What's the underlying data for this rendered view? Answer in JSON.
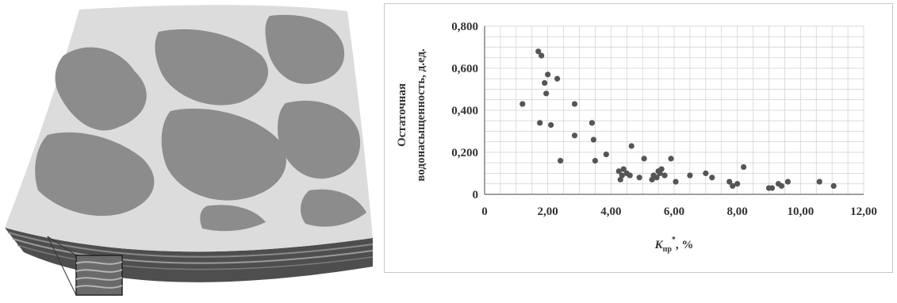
{
  "colors": {
    "marker": "#555555",
    "grid": "#cfcfcf",
    "axis": "#666666",
    "text": "#333333",
    "surface_light": "#d9d9d9",
    "surface_dark": "#8a8a8a",
    "layers": "#4a4a4a"
  },
  "illustration": {
    "kind": "reservoir-block-with-layer-inset"
  },
  "chart_data": {
    "type": "scatter",
    "title": "",
    "ylabel_line1": "Остаточная",
    "ylabel_line2": "водонасыщенность, д.ед.",
    "xlabel_main": "K",
    "xlabel_sub": "пр",
    "xlabel_sup": "*",
    "xlabel_suffix": ", %",
    "xlim": [
      0,
      12
    ],
    "ylim": [
      0,
      0.8
    ],
    "grid": true,
    "x_ticks": [
      0,
      2,
      4,
      6,
      8,
      10,
      12
    ],
    "y_ticks": [
      0,
      0.2,
      0.4,
      0.6,
      0.8
    ],
    "x_tick_labels": [
      "0",
      "2,00",
      "4,00",
      "6,00",
      "8,00",
      "10,00",
      "12,00"
    ],
    "y_tick_labels": [
      "0",
      "0,200",
      "0,400",
      "0,600",
      "0,800"
    ],
    "points": [
      [
        1.2,
        0.43
      ],
      [
        1.7,
        0.68
      ],
      [
        1.8,
        0.66
      ],
      [
        1.75,
        0.34
      ],
      [
        1.9,
        0.53
      ],
      [
        1.95,
        0.48
      ],
      [
        2.0,
        0.57
      ],
      [
        2.1,
        0.33
      ],
      [
        2.3,
        0.55
      ],
      [
        2.4,
        0.16
      ],
      [
        2.85,
        0.43
      ],
      [
        2.85,
        0.28
      ],
      [
        3.4,
        0.34
      ],
      [
        3.45,
        0.26
      ],
      [
        3.5,
        0.16
      ],
      [
        3.85,
        0.19
      ],
      [
        4.25,
        0.11
      ],
      [
        4.3,
        0.07
      ],
      [
        4.35,
        0.09
      ],
      [
        4.4,
        0.12
      ],
      [
        4.5,
        0.1
      ],
      [
        4.6,
        0.09
      ],
      [
        4.65,
        0.23
      ],
      [
        4.9,
        0.08
      ],
      [
        5.05,
        0.17
      ],
      [
        5.3,
        0.07
      ],
      [
        5.35,
        0.09
      ],
      [
        5.45,
        0.08
      ],
      [
        5.5,
        0.11
      ],
      [
        5.55,
        0.1
      ],
      [
        5.6,
        0.12
      ],
      [
        5.7,
        0.09
      ],
      [
        5.9,
        0.17
      ],
      [
        6.05,
        0.06
      ],
      [
        6.5,
        0.09
      ],
      [
        7.0,
        0.1
      ],
      [
        7.2,
        0.08
      ],
      [
        7.75,
        0.06
      ],
      [
        7.85,
        0.04
      ],
      [
        8.0,
        0.05
      ],
      [
        8.2,
        0.13
      ],
      [
        9.0,
        0.03
      ],
      [
        9.1,
        0.03
      ],
      [
        9.3,
        0.05
      ],
      [
        9.4,
        0.04
      ],
      [
        9.6,
        0.06
      ],
      [
        10.6,
        0.06
      ],
      [
        11.05,
        0.04
      ]
    ]
  }
}
